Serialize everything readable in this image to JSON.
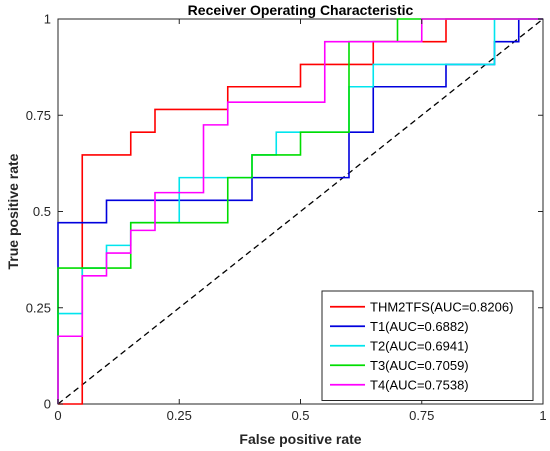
{
  "chart_data": {
    "type": "line",
    "title": "Receiver Operating Characteristic",
    "xlabel": "False positive rate",
    "ylabel": "True positive rate",
    "xlim": [
      0,
      1
    ],
    "ylim": [
      0,
      1
    ],
    "xticks": [
      0,
      0.25,
      0.5,
      0.75,
      1
    ],
    "xtick_labels": [
      "0",
      "0.25",
      "0.5",
      "0.75",
      "1"
    ],
    "yticks": [
      0,
      0.25,
      0.5,
      0.75,
      1
    ],
    "ytick_labels": [
      "0",
      "0.25",
      "0.5",
      "0.75",
      "1"
    ],
    "grid": false,
    "legend_position": "bottom-right",
    "reference_line": {
      "x": [
        0,
        1
      ],
      "y": [
        0,
        1
      ],
      "color": "#000000",
      "style": "dashed"
    },
    "series": [
      {
        "name": "THM2TFS(AUC=0.8206)",
        "color": "#ff0000",
        "x": [
          0,
          0.05,
          0.05,
          0.15,
          0.15,
          0.2,
          0.2,
          0.35,
          0.35,
          0.5,
          0.5,
          0.65,
          0.65,
          0.8,
          0.8,
          1
        ],
        "y": [
          0,
          0,
          0.647,
          0.647,
          0.706,
          0.706,
          0.765,
          0.765,
          0.824,
          0.824,
          0.882,
          0.882,
          0.941,
          0.941,
          1,
          1
        ]
      },
      {
        "name": "T1(AUC=0.6882)",
        "color": "#0000dd",
        "x": [
          0,
          0,
          0.05,
          0.05,
          0.1,
          0.1,
          0.35,
          0.35,
          0.4,
          0.4,
          0.6,
          0.6,
          0.65,
          0.65,
          0.8,
          0.8,
          0.9,
          0.9,
          0.95,
          0.95,
          1
        ],
        "y": [
          0,
          0.471,
          0.471,
          0.471,
          0.471,
          0.529,
          0.529,
          0.529,
          0.529,
          0.588,
          0.588,
          0.706,
          0.706,
          0.824,
          0.824,
          0.882,
          0.882,
          0.941,
          0.941,
          1,
          1
        ]
      },
      {
        "name": "T2(AUC=0.6941)",
        "color": "#00e5ee",
        "x": [
          0,
          0,
          0.05,
          0.05,
          0.1,
          0.1,
          0.15,
          0.15,
          0.25,
          0.25,
          0.4,
          0.4,
          0.45,
          0.45,
          0.6,
          0.6,
          0.65,
          0.65,
          0.9,
          0.9,
          1
        ],
        "y": [
          0,
          0.235,
          0.235,
          0.353,
          0.353,
          0.412,
          0.412,
          0.471,
          0.471,
          0.588,
          0.588,
          0.647,
          0.647,
          0.706,
          0.706,
          0.824,
          0.824,
          0.882,
          0.882,
          1,
          1
        ]
      },
      {
        "name": "T3(AUC=0.7059)",
        "color": "#00dd00",
        "x": [
          0,
          0,
          0.1,
          0.1,
          0.15,
          0.15,
          0.35,
          0.35,
          0.4,
          0.4,
          0.5,
          0.5,
          0.6,
          0.6,
          0.7,
          0.7,
          1
        ],
        "y": [
          0,
          0.353,
          0.353,
          0.353,
          0.353,
          0.471,
          0.471,
          0.588,
          0.588,
          0.647,
          0.647,
          0.706,
          0.706,
          0.941,
          0.941,
          1,
          1
        ]
      },
      {
        "name": "T4(AUC=0.7538)",
        "color": "#ff00ff",
        "x": [
          0,
          0,
          0.05,
          0.05,
          0.1,
          0.1,
          0.15,
          0.15,
          0.2,
          0.2,
          0.3,
          0.3,
          0.35,
          0.35,
          0.55,
          0.55,
          0.75,
          0.75,
          1
        ],
        "y": [
          0,
          0.176,
          0.176,
          0.333,
          0.333,
          0.392,
          0.392,
          0.451,
          0.451,
          0.549,
          0.549,
          0.725,
          0.725,
          0.784,
          0.784,
          0.941,
          0.941,
          1,
          1
        ]
      }
    ]
  }
}
